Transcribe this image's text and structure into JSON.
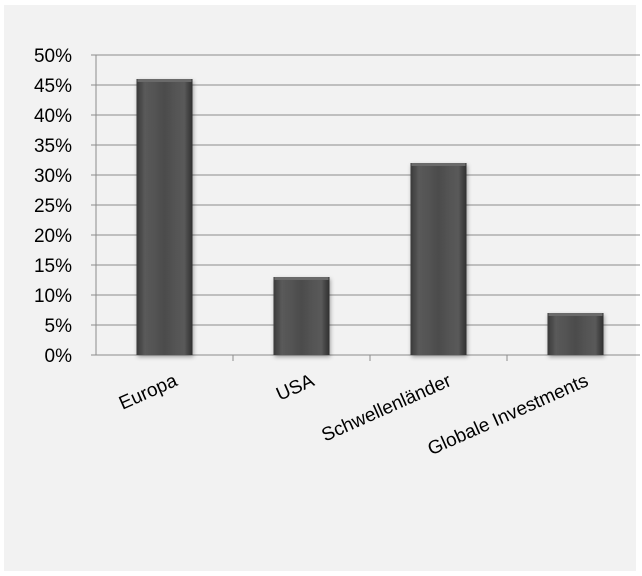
{
  "chart_data": {
    "type": "bar",
    "categories": [
      "Europa",
      "USA",
      "Schwellenländer",
      "Globale Investments"
    ],
    "values": [
      46,
      13,
      32,
      7
    ],
    "ylim": [
      0,
      50
    ],
    "yticks": [
      "0%",
      "5%",
      "10%",
      "15%",
      "20%",
      "25%",
      "30%",
      "35%",
      "40%",
      "45%",
      "50%"
    ],
    "title": "",
    "xlabel": "",
    "ylabel": "",
    "grid": true,
    "legend": "none",
    "bar_color": "#4a4a4a"
  }
}
